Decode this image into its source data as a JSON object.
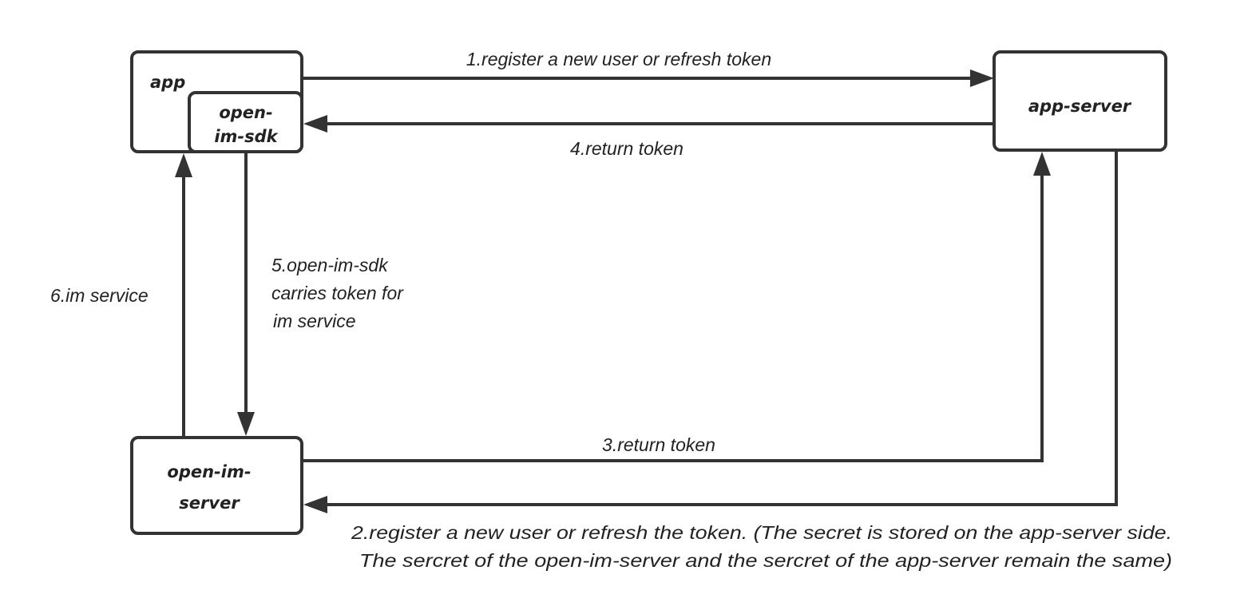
{
  "nodes": {
    "app": "app",
    "sdk_line1": "open-",
    "sdk_line2": "im-sdk",
    "app_server": "app-server",
    "im_server_line1": "open-im-",
    "im_server_line2": "server"
  },
  "edges": {
    "e1": "1.register a new user or refresh token",
    "e4": "4.return token",
    "e5_line1": "5.open-im-sdk",
    "e5_line2": "carries token for",
    "e5_line3": "im service",
    "e6": "6.im service",
    "e3": "3.return token",
    "e2_line1": "2.register a new user or refresh the token. (The secret is stored on the app-server side.",
    "e2_line2": "The sercret of the open-im-server and the sercret of the app-server remain the same)"
  },
  "colors": {
    "line": "#333333",
    "text": "#222222",
    "background": "#ffffff"
  }
}
